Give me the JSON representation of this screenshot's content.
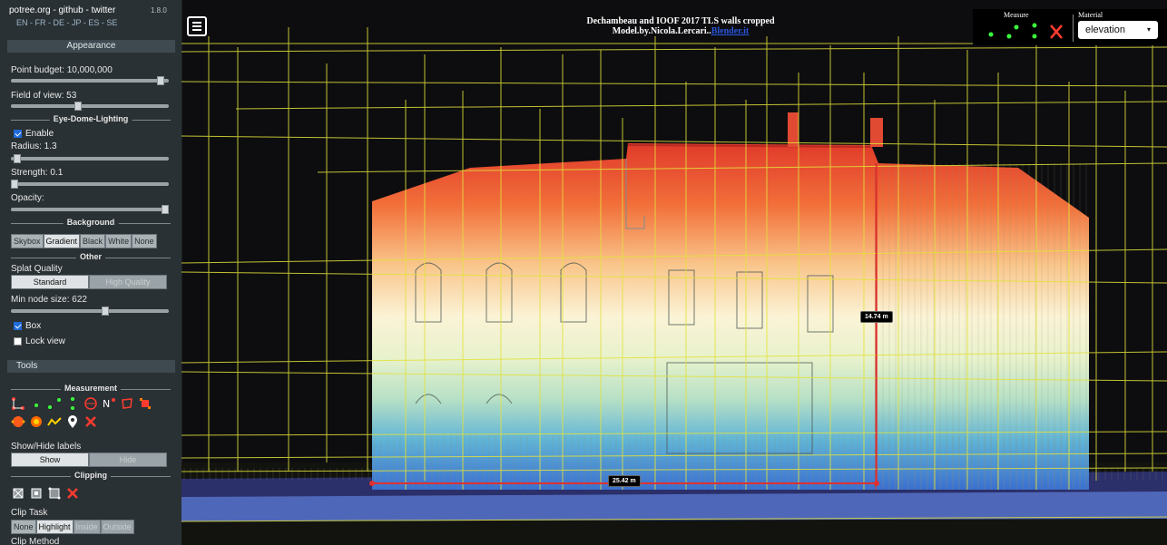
{
  "sidebar": {
    "header_links": "potree.org - github - twitter",
    "version": "1.8.0",
    "languages": "EN - FR - DE - JP - ES - SE",
    "appearance": {
      "title": "Appearance",
      "point_budget_label": "Point budget: 10,000,000",
      "point_budget_fraction": 0.97,
      "fov_label": "Field of view: 53",
      "fov_fraction": 0.42
    },
    "edl": {
      "title": "Eye-Dome-Lighting",
      "enable_label": "Enable",
      "enabled": true,
      "radius_label": "Radius: 1.3",
      "radius_fraction": 0.02,
      "strength_label": "Strength: 0.1",
      "strength_fraction": 0.0,
      "opacity_label": "Opacity:",
      "opacity_fraction": 1.0
    },
    "background": {
      "title": "Background",
      "options": [
        "Skybox",
        "Gradient",
        "Black",
        "White",
        "None"
      ],
      "selected": "Gradient"
    },
    "other": {
      "title": "Other",
      "splat_label": "Splat Quality",
      "splat_options": [
        "Standard",
        "High Quality"
      ],
      "splat_selected": "Standard",
      "min_node_label": "Min node size: 622",
      "min_node_fraction": 0.6,
      "box_label": "Box",
      "box_checked": true,
      "lock_label": "Lock view",
      "lock_checked": false
    },
    "tools": {
      "title": "Tools",
      "measurement_title": "Measurement",
      "labels_title": "Show/Hide labels",
      "show_label": "Show",
      "hide_label": "Hide",
      "clipping_title": "Clipping",
      "clip_task_label": "Clip Task",
      "clip_task_options": [
        "None",
        "Highlight",
        "Inside",
        "Outside"
      ],
      "clip_task_selected": "Highlight",
      "clip_method_label": "Clip Method"
    }
  },
  "viewer": {
    "title_line1": "Dechambeau and IOOF 2017 TLS walls cropped",
    "title_line2": "Model.by.Nicola.Lercari..",
    "title_link": "Blender.it",
    "measure_title": "Measure",
    "material_title": "Material",
    "material_value": "elevation",
    "height_measure": "14.74 m",
    "width_measure": "25.42 m"
  }
}
